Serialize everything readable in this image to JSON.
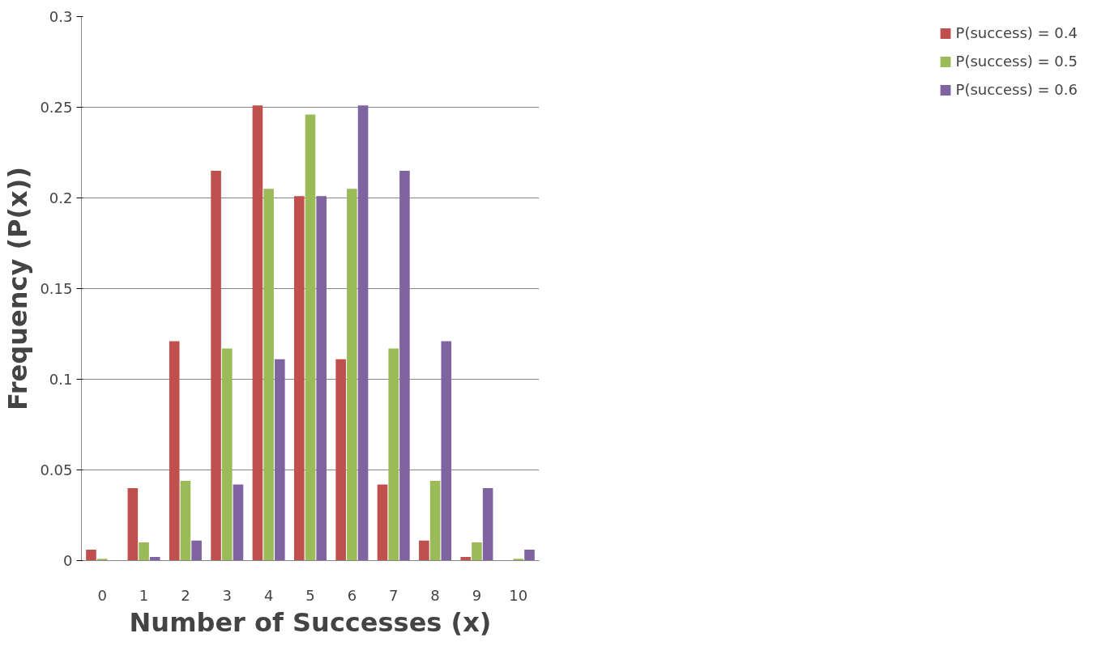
{
  "chart_data": {
    "type": "bar",
    "xlabel": "Number of Successes (x)",
    "ylabel": "Frequency (P(x))",
    "categories": [
      "0",
      "1",
      "2",
      "3",
      "4",
      "5",
      "6",
      "7",
      "8",
      "9",
      "10"
    ],
    "series": [
      {
        "name": "P(success) = 0.4",
        "color": "#c0504d",
        "values": [
          0.006,
          0.04,
          0.121,
          0.215,
          0.251,
          0.201,
          0.111,
          0.042,
          0.011,
          0.002,
          0.0
        ]
      },
      {
        "name": "P(success) = 0.5",
        "color": "#9bbb59",
        "values": [
          0.001,
          0.01,
          0.044,
          0.117,
          0.205,
          0.246,
          0.205,
          0.117,
          0.044,
          0.01,
          0.001
        ]
      },
      {
        "name": "P(success) = 0.6",
        "color": "#8064a2",
        "values": [
          0.0,
          0.002,
          0.011,
          0.042,
          0.111,
          0.201,
          0.251,
          0.215,
          0.121,
          0.04,
          0.006
        ]
      }
    ],
    "ylim": [
      0,
      0.3
    ],
    "yticks": [
      0,
      0.05,
      0.1,
      0.15,
      0.2,
      0.25,
      0.3
    ],
    "grid": "y",
    "legend": "right"
  }
}
